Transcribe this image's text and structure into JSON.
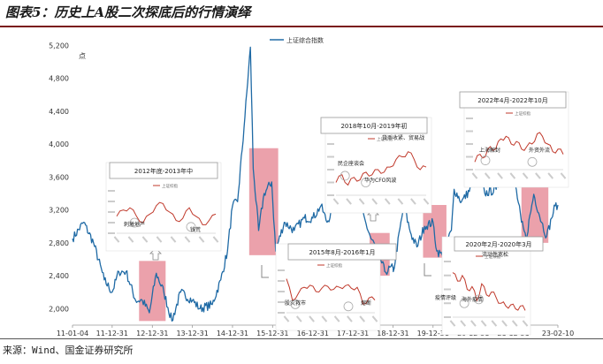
{
  "title": "图表5：历史上A股二次探底后的行情演绎",
  "source": "来源：Wind、国金证券研究所",
  "colors": {
    "main_line": "#1f6aa5",
    "inset_line": "#c0392b",
    "highlight": "#e8909c",
    "title_rule": "#7a1a1a"
  },
  "chart_data": {
    "type": "line",
    "ylabel": "点",
    "ylim": [
      1800,
      5300
    ],
    "yticks": [
      "2,000",
      "2,400",
      "2,800",
      "3,200",
      "3,600",
      "4,000",
      "4,400",
      "4,800",
      "5,200"
    ],
    "xtick_labels": [
      "11-01-04",
      "11-12-31",
      "12-12-31",
      "13-12-31",
      "14-12-31",
      "15-12-31",
      "16-12-31",
      "17-12-31",
      "18-12-31",
      "19-12-31",
      "20-12-31",
      "21-12-31",
      "23-02-10"
    ],
    "legend": [
      {
        "name": "上证综合指数",
        "color": "#1f6aa5",
        "placement": "top-center"
      }
    ],
    "series": [
      {
        "name": "上证综合指数",
        "x": [
          "2011-01-04",
          "2011-04-15",
          "2011-07-15",
          "2011-10-20",
          "2011-12-31",
          "2012-03-01",
          "2012-05-05",
          "2012-08-01",
          "2012-10-01",
          "2012-12-04",
          "2013-02-05",
          "2013-04-15",
          "2013-06-27",
          "2013-09-15",
          "2013-12-31",
          "2014-03-10",
          "2014-06-30",
          "2014-09-15",
          "2014-11-15",
          "2014-12-31",
          "2015-02-15",
          "2015-04-15",
          "2015-06-12",
          "2015-07-08",
          "2015-08-26",
          "2015-10-15",
          "2015-12-23",
          "2016-01-28",
          "2016-04-15",
          "2016-07-15",
          "2016-10-15",
          "2016-12-31",
          "2017-03-15",
          "2017-05-10",
          "2017-08-15",
          "2017-11-15",
          "2018-01-29",
          "2018-03-15",
          "2018-06-15",
          "2018-08-15",
          "2018-10-18",
          "2018-12-31",
          "2019-01-03",
          "2019-04-08",
          "2019-06-15",
          "2019-08-06",
          "2019-10-15",
          "2019-12-31",
          "2020-02-03",
          "2020-03-23",
          "2020-06-15",
          "2020-07-10",
          "2020-09-15",
          "2020-12-31",
          "2021-02-18",
          "2021-04-15",
          "2021-07-28",
          "2021-09-15",
          "2021-12-31",
          "2022-03-15",
          "2022-04-26",
          "2022-07-05",
          "2022-09-15",
          "2022-10-31",
          "2022-12-15",
          "2023-01-15",
          "2023-02-10"
        ],
        "values": [
          2850,
          3050,
          2800,
          2350,
          2200,
          2450,
          2450,
          2100,
          2100,
          1950,
          2430,
          2200,
          1850,
          2200,
          2100,
          2000,
          2050,
          2350,
          2700,
          3250,
          3300,
          4200,
          5178,
          3700,
          2950,
          3400,
          3540,
          2700,
          3050,
          2950,
          3100,
          3100,
          3250,
          3050,
          3350,
          3400,
          3560,
          3200,
          2850,
          2700,
          2450,
          2500,
          2450,
          3250,
          2900,
          2750,
          3000,
          3050,
          2700,
          2650,
          2950,
          3450,
          3300,
          3500,
          3650,
          3400,
          3450,
          3600,
          3650,
          3050,
          2850,
          3390,
          3050,
          2880,
          3100,
          3250,
          3260
        ]
      }
    ],
    "highlights": [
      {
        "from": "2012-09-01",
        "to": "2013-05-01",
        "ylim": [
          1850,
          2580
        ]
      },
      {
        "from": "2015-06-01",
        "to": "2016-02-20",
        "ylim": [
          2650,
          3950
        ]
      },
      {
        "from": "2018-06-01",
        "to": "2018-12-01",
        "ylim": [
          2400,
          2920
        ]
      },
      {
        "from": "2019-10-01",
        "to": "2020-05-01",
        "ylim": [
          2620,
          3260
        ]
      },
      {
        "from": "2022-03-15",
        "to": "2022-11-15",
        "ylim": [
          2800,
          3480
        ]
      }
    ],
    "insets": [
      {
        "title": "2012年底-2013年中",
        "legend": "上证综指",
        "notes": [
          "刺激地产",
          "钱荒"
        ]
      },
      {
        "title": "2015年8月-2016年1月",
        "legend": "上证综指",
        "notes": [
          "股灾救市",
          "熔断"
        ]
      },
      {
        "title": "2018年10月-2019年初",
        "legend": "上证综指",
        "notes": [
          "民企座谈会",
          "华为CFO风波",
          "货币收紧、贸易战"
        ]
      },
      {
        "title": "2020年2月-2020年3月",
        "legend": "上证综指",
        "notes": [
          "流动性宽松",
          "疫情评级",
          "海外疫情"
        ]
      },
      {
        "title": "2022年4月-2022年10月",
        "legend": "上证综指",
        "notes": [
          "上海解封",
          "外资外流"
        ]
      }
    ]
  }
}
